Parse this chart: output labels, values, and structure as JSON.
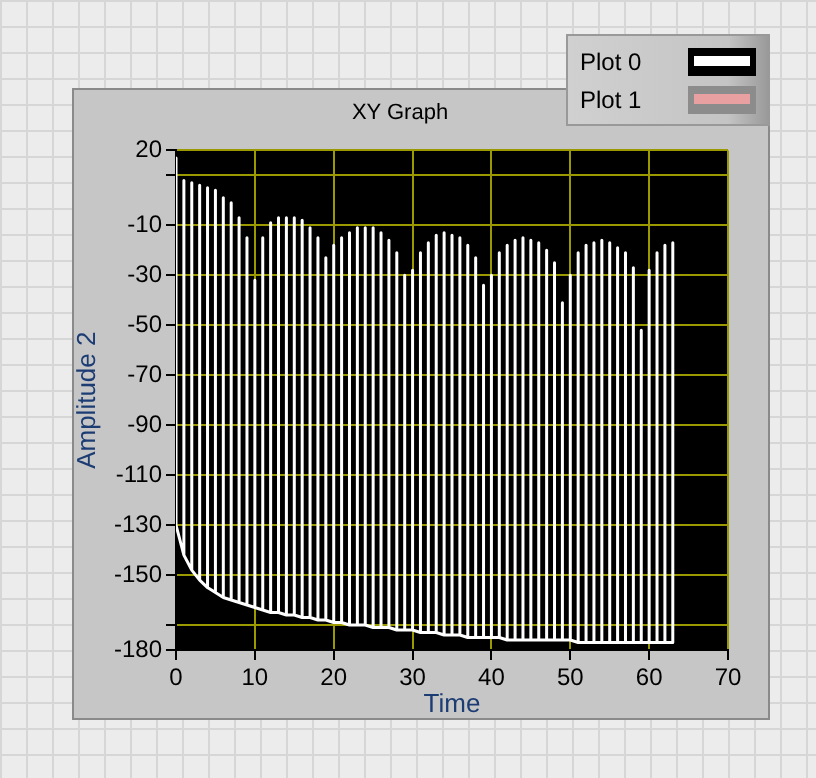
{
  "chart_data": {
    "type": "line",
    "title": "XY Graph",
    "xlabel": "Time",
    "ylabel": "Amplitude 2",
    "xlim": [
      0,
      70
    ],
    "xticks": [
      0,
      10,
      20,
      30,
      40,
      50,
      60,
      70
    ],
    "ylim": [
      -180,
      20
    ],
    "yticks": [
      20,
      {
        "value": 10,
        "label": null
      },
      -10,
      -30,
      -50,
      -70,
      -90,
      -110,
      -130,
      -150,
      {
        "value": -170,
        "label": null
      },
      -180
    ],
    "grid": true,
    "legend": "top right",
    "marker": "none",
    "line_style": "solid",
    "series": [
      {
        "name": "Plot 0",
        "color": "#ffffff",
        "x": [
          0,
          0,
          0,
          1,
          1,
          1,
          2,
          2,
          2,
          3,
          3,
          3,
          4,
          4,
          4,
          5,
          5,
          5,
          6,
          6,
          6,
          7,
          7,
          7,
          8,
          8,
          8,
          9,
          9,
          9,
          10,
          10,
          10,
          11,
          11,
          11,
          12,
          12,
          12,
          13,
          13,
          13,
          14,
          14,
          14,
          15,
          15,
          15,
          16,
          16,
          16,
          17,
          17,
          17,
          18,
          18,
          18,
          19,
          19,
          19,
          20,
          20,
          20,
          21,
          21,
          21,
          22,
          22,
          22,
          23,
          23,
          23,
          24,
          24,
          24,
          25,
          25,
          25,
          26,
          26,
          26,
          27,
          27,
          27,
          28,
          28,
          28,
          29,
          29,
          29,
          30,
          30,
          30,
          31,
          31,
          31,
          32,
          32,
          32,
          33,
          33,
          33,
          34,
          34,
          34,
          35,
          35,
          35,
          36,
          36,
          36,
          37,
          37,
          37,
          38,
          38,
          38,
          39,
          39,
          39,
          40,
          40,
          40,
          41,
          41,
          41,
          42,
          42,
          42,
          43,
          43,
          43,
          44,
          44,
          44,
          45,
          45,
          45,
          46,
          46,
          46,
          47,
          47,
          47,
          48,
          48,
          48,
          49,
          49,
          49,
          50,
          50,
          50,
          51,
          51,
          51,
          52,
          52,
          52,
          53,
          53,
          53,
          54,
          54,
          54,
          55,
          55,
          55,
          56,
          56,
          56,
          57,
          57,
          57,
          58,
          58,
          58,
          59,
          59,
          59,
          60,
          60,
          60,
          61,
          61,
          61,
          62,
          62,
          62,
          63,
          63,
          63
        ],
        "values": [
          -130,
          17,
          -130,
          -142,
          8,
          -142,
          -148,
          7,
          -148,
          -152,
          6,
          -152,
          -155,
          5,
          -155,
          -157,
          4,
          -157,
          -159,
          1,
          -159,
          -160,
          -1,
          -160,
          -161,
          -7,
          -161,
          -162,
          -15,
          -162,
          -163,
          -32,
          -163,
          -164,
          -15,
          -164,
          -165,
          -9,
          -165,
          -165,
          -7,
          -165,
          -166,
          -7,
          -166,
          -166,
          -7,
          -166,
          -167,
          -8,
          -167,
          -167,
          -11,
          -167,
          -168,
          -15,
          -168,
          -168,
          -23,
          -168,
          -169,
          -18,
          -169,
          -169,
          -15,
          -169,
          -170,
          -13,
          -170,
          -170,
          -11,
          -170,
          -170,
          -11,
          -170,
          -171,
          -11,
          -171,
          -171,
          -13,
          -171,
          -171,
          -16,
          -171,
          -172,
          -21,
          -172,
          -172,
          -30,
          -172,
          -172,
          -28,
          -172,
          -173,
          -21,
          -173,
          -173,
          -17,
          -173,
          -173,
          -14,
          -173,
          -174,
          -13,
          -174,
          -174,
          -14,
          -174,
          -174,
          -15,
          -174,
          -175,
          -18,
          -175,
          -175,
          -23,
          -175,
          -175,
          -34,
          -175,
          -175,
          -30,
          -175,
          -175,
          -21,
          -175,
          -176,
          -18,
          -176,
          -176,
          -16,
          -176,
          -176,
          -15,
          -176,
          -176,
          -16,
          -176,
          -176,
          -17,
          -176,
          -176,
          -20,
          -176,
          -176,
          -25,
          -176,
          -176,
          -41,
          -176,
          -176,
          -30,
          -176,
          -177,
          -21,
          -177,
          -177,
          -18,
          -177,
          -177,
          -17,
          -177,
          -177,
          -16,
          -177,
          -177,
          -17,
          -177,
          -177,
          -19,
          -177,
          -177,
          -21,
          -177,
          -177,
          -27,
          -177,
          -177,
          -52,
          -177,
          -177,
          -28,
          -177,
          -177,
          -21,
          -177,
          -177,
          -18,
          -177,
          -177,
          -17,
          -177
        ]
      },
      {
        "name": "Plot 1",
        "color": "#e8a0a0"
      }
    ]
  }
}
